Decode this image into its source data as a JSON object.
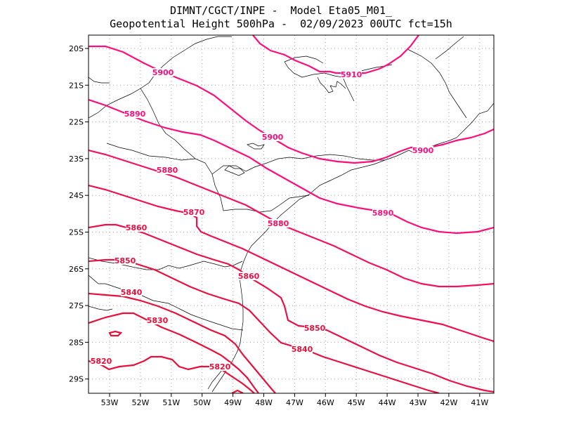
{
  "title": {
    "line1": "DIMNT/CGCT/INPE -  Model Eta05_M01_",
    "line2": "Geopotential Height 500hPa -  02/09/2023 00UTC fct=15h"
  },
  "axes": {
    "lat_labels": [
      "20S",
      "21S",
      "22S",
      "23S",
      "24S",
      "25S",
      "26S",
      "27S",
      "28S",
      "29S"
    ],
    "lon_labels": [
      "53W",
      "52W",
      "51W",
      "50W",
      "49W",
      "48W",
      "47W",
      "46W",
      "45W",
      "44W",
      "43W",
      "42W",
      "41W"
    ]
  },
  "colors": {
    "contour_low": "#e8103a",
    "contour_high": "#ff0f7c",
    "coast": "#000000",
    "grid": "#a0a0a0"
  },
  "contours": [
    {
      "value": 5910,
      "label": "5910",
      "color": "#ff0f7c"
    },
    {
      "value": 5900,
      "label": "5900",
      "color": "#ff0f7c"
    },
    {
      "value": 5890,
      "label": "5890",
      "color": "#ff0f7c"
    },
    {
      "value": 5880,
      "label": "5880",
      "color": "#f51060"
    },
    {
      "value": 5870,
      "label": "5870",
      "color": "#f01050"
    },
    {
      "value": 5860,
      "label": "5860",
      "color": "#ec1048"
    },
    {
      "value": 5850,
      "label": "5850",
      "color": "#e8103f"
    },
    {
      "value": 5840,
      "label": "5840",
      "color": "#e8103a"
    },
    {
      "value": 5830,
      "label": "5830",
      "color": "#e8103a"
    },
    {
      "value": 5820,
      "label": "5820",
      "color": "#e8103a"
    }
  ]
}
